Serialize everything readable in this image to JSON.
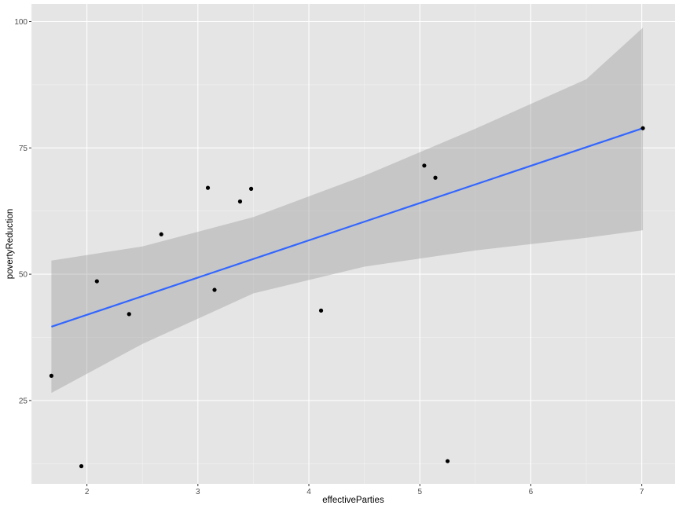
{
  "chart_data": {
    "type": "scatter",
    "xlabel": "effectiveParties",
    "ylabel": "povertyReduction",
    "xlim": [
      1.5,
      7.3
    ],
    "ylim": [
      8.5,
      103.5
    ],
    "x_ticks": [
      2,
      3,
      4,
      5,
      6,
      7
    ],
    "y_ticks": [
      25,
      50,
      75,
      100
    ],
    "grid": true,
    "points": [
      {
        "x": 1.68,
        "y": 29.9
      },
      {
        "x": 1.95,
        "y": 12.0
      },
      {
        "x": 2.09,
        "y": 48.6
      },
      {
        "x": 2.38,
        "y": 42.1
      },
      {
        "x": 2.67,
        "y": 57.9
      },
      {
        "x": 3.09,
        "y": 67.1
      },
      {
        "x": 3.15,
        "y": 46.9
      },
      {
        "x": 3.38,
        "y": 64.4
      },
      {
        "x": 3.48,
        "y": 66.9
      },
      {
        "x": 4.11,
        "y": 42.8
      },
      {
        "x": 5.04,
        "y": 71.5
      },
      {
        "x": 5.14,
        "y": 69.1
      },
      {
        "x": 5.25,
        "y": 13.0
      },
      {
        "x": 7.01,
        "y": 78.9
      }
    ],
    "fit_line": {
      "x": [
        1.68,
        7.01
      ],
      "y": [
        39.6,
        78.9
      ]
    },
    "confidence_band": {
      "x": [
        1.68,
        2.5,
        3.5,
        4.5,
        5.5,
        6.5,
        7.01
      ],
      "upper": [
        52.7,
        55.5,
        61.3,
        69.5,
        78.8,
        88.6,
        98.8
      ],
      "lower": [
        26.5,
        36.2,
        46.2,
        51.5,
        54.7,
        57.2,
        58.7
      ]
    },
    "colors": {
      "panel": "#e5e5e5",
      "grid_major": "#ffffff",
      "grid_minor": "#f2f2f2",
      "points": "#000000",
      "fit_line": "#3366ff",
      "band": "#999999"
    }
  }
}
